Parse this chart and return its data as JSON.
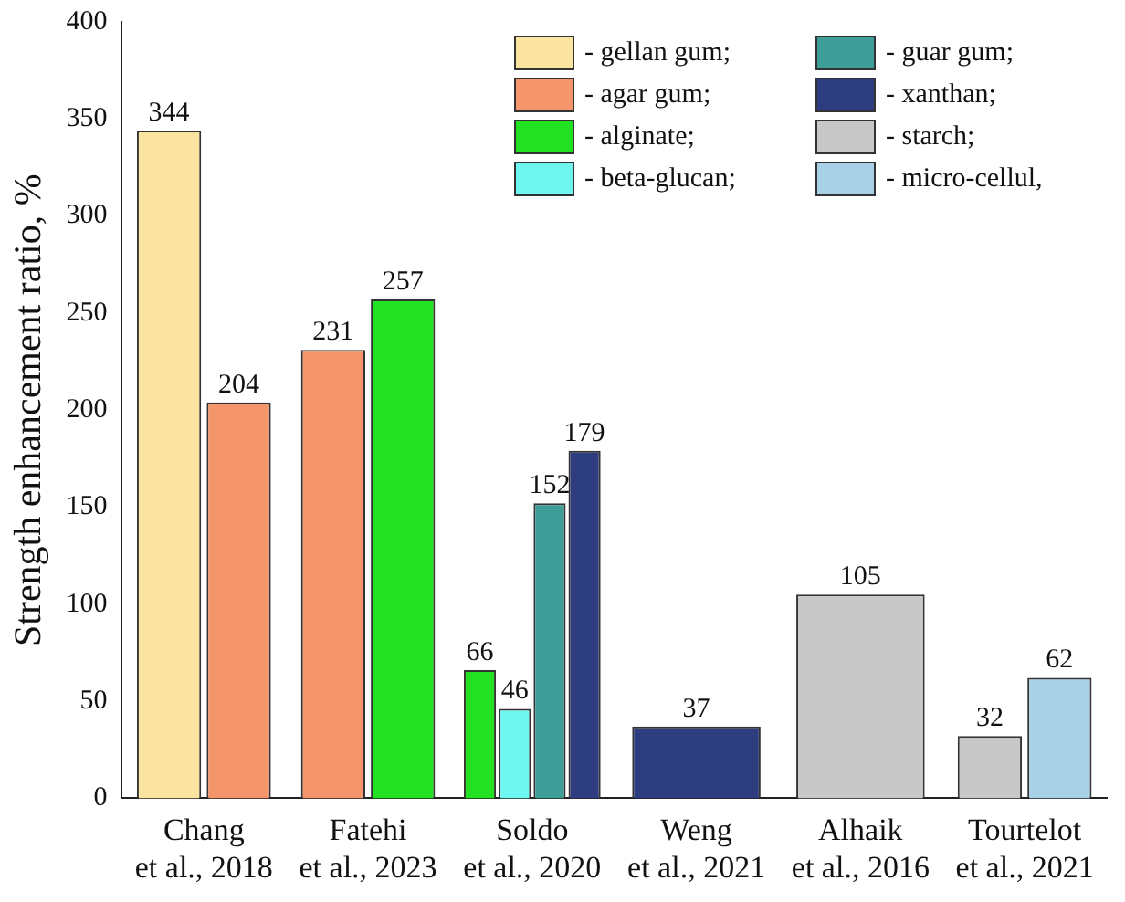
{
  "chart_data": {
    "type": "bar",
    "ylabel": "Strength enhancement ratio, %",
    "categories": [
      "Chang et al., 2018",
      "Fatehi et al., 2023",
      "Soldo et al., 2020",
      "Weng et al., 2021",
      "Alhaik et al., 2016",
      "Tourtelot et al., 2021"
    ],
    "series": [
      {
        "name": "- gellan gum;",
        "color": "#fbe3a0",
        "values": [
          344,
          null,
          null,
          null,
          null,
          null
        ]
      },
      {
        "name": "- agar gum;",
        "color": "#f4956c",
        "values": [
          204,
          231,
          null,
          null,
          null,
          null
        ]
      },
      {
        "name": "- alginate;",
        "color": "#22e022",
        "values": [
          null,
          257,
          66,
          null,
          null,
          null
        ]
      },
      {
        "name": "- beta-glucan;",
        "color": "#6ef7f0",
        "values": [
          null,
          null,
          46,
          null,
          null,
          null
        ]
      },
      {
        "name": "- guar gum;",
        "color": "#3d9e98",
        "values": [
          null,
          null,
          152,
          null,
          null,
          null
        ]
      },
      {
        "name": "- xanthan;",
        "color": "#2e3d80",
        "values": [
          null,
          null,
          179,
          37,
          null,
          null
        ]
      },
      {
        "name": "- starch;",
        "color": "#c8c8c8",
        "values": [
          null,
          null,
          null,
          null,
          105,
          32
        ]
      },
      {
        "name": "- micro-cellul,",
        "color": "#a8d0e6",
        "values": [
          null,
          null,
          null,
          null,
          null,
          62
        ]
      }
    ],
    "ylim": [
      0,
      400
    ],
    "yticks": [
      0,
      50,
      100,
      150,
      200,
      250,
      300,
      350,
      400
    ],
    "grid": false,
    "legend": "top right",
    "data_labels": true
  }
}
